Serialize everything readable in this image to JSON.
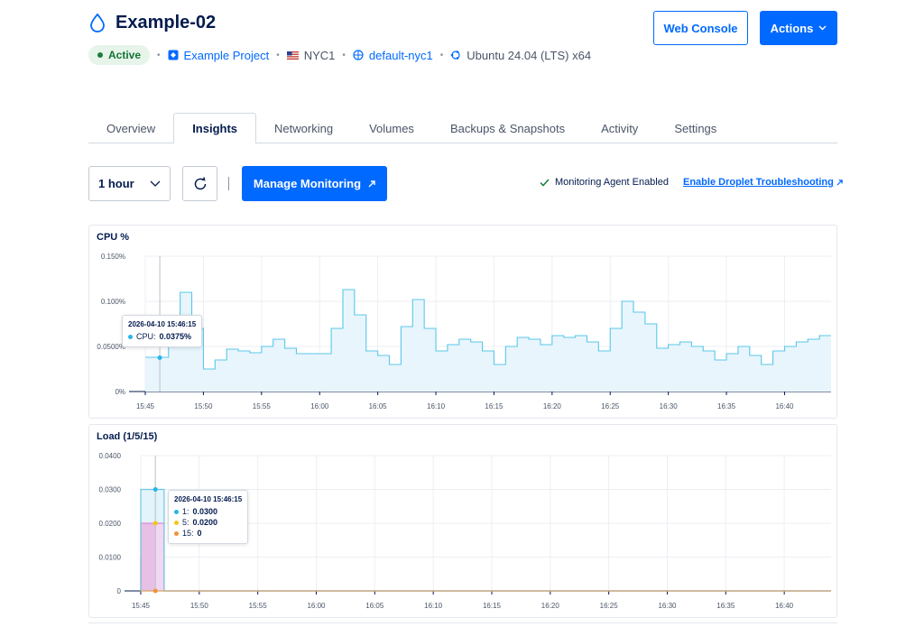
{
  "droplet": {
    "name": "Example-02",
    "status": "Active",
    "project": "Example Project",
    "region": "NYC1",
    "vpc": "default-nyc1",
    "os": "Ubuntu 24.04 (LTS) x64"
  },
  "header_buttons": {
    "web_console": "Web Console",
    "actions": "Actions"
  },
  "tabs": [
    {
      "label": "Overview",
      "active": false
    },
    {
      "label": "Insights",
      "active": true
    },
    {
      "label": "Networking",
      "active": false
    },
    {
      "label": "Volumes",
      "active": false
    },
    {
      "label": "Backups & Snapshots",
      "active": false
    },
    {
      "label": "Activity",
      "active": false
    },
    {
      "label": "Settings",
      "active": false
    }
  ],
  "toolbar": {
    "period": "1 hour",
    "manage_monitoring": "Manage Monitoring",
    "agent_status": "Monitoring Agent Enabled",
    "troubleshoot_link": "Enable Droplet Troubleshooting"
  },
  "colors": {
    "primary": "#0069ff",
    "cpu_line": "#5ac8ea",
    "load1": "#29b5e8",
    "load5": "#f5c518",
    "load15": "#f0923a",
    "load_band": "#d98bd6"
  },
  "icons": {
    "droplet": "droplet-icon",
    "status": "status-dot-icon",
    "project": "project-icon",
    "region": "us-flag-icon",
    "vpc": "vpc-icon",
    "os": "ubuntu-icon",
    "actions_chevron": "chevron-down-icon",
    "select_chevron": "chevron-down-icon",
    "refresh": "refresh-icon",
    "external": "external-link-icon",
    "check": "check-icon"
  },
  "chart_data": [
    {
      "type": "area",
      "title": "CPU %",
      "xlabel": "",
      "ylabel": "",
      "ylim": [
        0,
        0.15
      ],
      "yticks": [
        0,
        0.05,
        0.1,
        0.15
      ],
      "ytick_labels": [
        "0%",
        "0.0500%",
        "0.100%",
        "0.150%"
      ],
      "xlim": [
        0,
        59
      ],
      "xticks": [
        0,
        5,
        10,
        15,
        20,
        25,
        30,
        35,
        40,
        45,
        50,
        55
      ],
      "xtick_labels": [
        "15:45",
        "15:50",
        "15:55",
        "16:00",
        "16:05",
        "16:10",
        "16:15",
        "16:20",
        "16:25",
        "16:30",
        "16:35",
        "16:40"
      ],
      "grid": true,
      "series": [
        {
          "name": "CPU",
          "x": [
            0,
            1,
            2,
            3,
            4,
            5,
            6,
            7,
            8,
            9,
            10,
            11,
            12,
            13,
            14,
            15,
            16,
            17,
            18,
            19,
            20,
            21,
            22,
            23,
            24,
            25,
            26,
            27,
            28,
            29,
            30,
            31,
            32,
            33,
            34,
            35,
            36,
            37,
            38,
            39,
            40,
            41,
            42,
            43,
            44,
            45,
            46,
            47,
            48,
            49,
            50,
            51,
            52,
            53,
            54,
            55,
            56,
            57,
            58,
            59
          ],
          "values": [
            0.038,
            0.038,
            0.07,
            0.11,
            0.07,
            0.025,
            0.035,
            0.047,
            0.045,
            0.043,
            0.05,
            0.058,
            0.048,
            0.042,
            0.042,
            0.042,
            0.07,
            0.113,
            0.085,
            0.045,
            0.04,
            0.03,
            0.072,
            0.102,
            0.07,
            0.045,
            0.052,
            0.058,
            0.055,
            0.045,
            0.03,
            0.05,
            0.06,
            0.058,
            0.052,
            0.062,
            0.06,
            0.062,
            0.055,
            0.045,
            0.07,
            0.1,
            0.088,
            0.075,
            0.048,
            0.052,
            0.055,
            0.05,
            0.045,
            0.035,
            0.042,
            0.05,
            0.04,
            0.03,
            0.045,
            0.05,
            0.055,
            0.058,
            0.062,
            0.062
          ]
        }
      ],
      "tooltip": {
        "time": "2026-04-10 15:46:15",
        "label": "CPU:",
        "value": "0.0375%",
        "x": 1.25,
        "y": 0.0375
      }
    },
    {
      "type": "line",
      "title": "Load (1/5/15)",
      "xlabel": "",
      "ylabel": "",
      "ylim": [
        0,
        0.04
      ],
      "yticks": [
        0,
        0.01,
        0.02,
        0.03,
        0.04
      ],
      "ytick_labels": [
        "0",
        "0.0100",
        "0.0200",
        "0.0300",
        "0.0400"
      ],
      "xlim": [
        0,
        59
      ],
      "xticks": [
        0,
        5,
        10,
        15,
        20,
        25,
        30,
        35,
        40,
        45,
        50,
        55
      ],
      "xtick_labels": [
        "15:45",
        "15:50",
        "15:55",
        "16:00",
        "16:05",
        "16:10",
        "16:15",
        "16:20",
        "16:25",
        "16:30",
        "16:35",
        "16:40"
      ],
      "grid": true,
      "series": [
        {
          "name": "1",
          "x": [
            0,
            0,
            1.25,
            2,
            2,
            59
          ],
          "values": [
            0,
            0.03,
            0.03,
            0.03,
            0,
            0
          ]
        },
        {
          "name": "5",
          "x": [
            0,
            0,
            1.25,
            2,
            2,
            59
          ],
          "values": [
            0,
            0.02,
            0.02,
            0.02,
            0,
            0
          ]
        },
        {
          "name": "15",
          "x": [
            0,
            0,
            0,
            1.25,
            59
          ],
          "values": [
            0,
            0.01,
            0,
            0,
            0
          ]
        }
      ],
      "tooltip": {
        "time": "2026-04-10 15:46:15",
        "rows": [
          {
            "label": "1:",
            "value": "0.0300"
          },
          {
            "label": "5:",
            "value": "0.0200"
          },
          {
            "label": "15:",
            "value": "0"
          }
        ],
        "x": 1.25
      }
    }
  ]
}
